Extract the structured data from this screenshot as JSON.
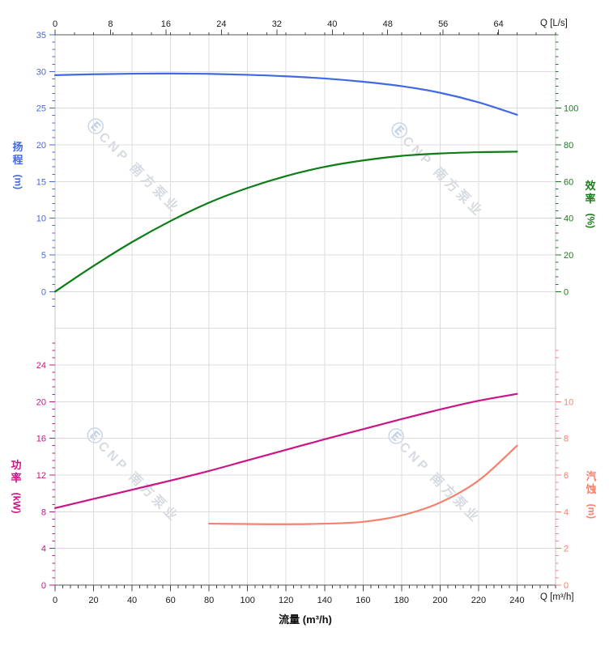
{
  "watermark": {
    "logo_glyph": "Ⓔ",
    "text": "CNP 南方泵业"
  },
  "chart_data": {
    "type": "line",
    "title": "",
    "grid": true,
    "x_axis_top": {
      "unit_label": "Q [L/s]",
      "ticks": [
        0,
        8,
        16,
        24,
        32,
        40,
        48,
        56,
        64
      ],
      "range_lps": [
        0,
        72.2
      ],
      "lps_to_m3h": 3.6
    },
    "x_axis_bottom": {
      "unit_label": "Q [m³/h]",
      "axis_title": "流量 (m³/h)",
      "ticks": [
        0,
        20,
        40,
        60,
        80,
        100,
        120,
        140,
        160,
        180,
        200,
        220,
        240
      ],
      "range": [
        0,
        260
      ]
    },
    "y_axes": {
      "head": {
        "title": "扬程",
        "unit": "(m)",
        "color": "#4468dd",
        "ticks": [
          35,
          30,
          25,
          20,
          15,
          10,
          5,
          0
        ],
        "range": [
          0,
          35
        ]
      },
      "efficiency": {
        "title": "效率",
        "unit": "(%)",
        "color": "#1c7a1c",
        "ticks": [
          100,
          80,
          60,
          40,
          20,
          0
        ],
        "range": [
          0,
          100
        ]
      },
      "power": {
        "title": "功率",
        "unit": "(kW)",
        "color": "#cc1487",
        "ticks": [
          24,
          20,
          16,
          12,
          8,
          4,
          0
        ],
        "range": [
          0,
          24
        ]
      },
      "npsh": {
        "title": "汽蚀",
        "unit": "(m)",
        "color": "#f4816e",
        "ticks": [
          10,
          8,
          6,
          4,
          2,
          0
        ],
        "range": [
          0,
          10
        ]
      }
    },
    "series": [
      {
        "name": "head",
        "axis": "head",
        "color": "#4169e1",
        "points": [
          [
            0,
            29.5
          ],
          [
            20,
            29.62
          ],
          [
            40,
            29.7
          ],
          [
            60,
            29.72
          ],
          [
            80,
            29.68
          ],
          [
            100,
            29.55
          ],
          [
            120,
            29.35
          ],
          [
            140,
            29.05
          ],
          [
            160,
            28.6
          ],
          [
            180,
            28.0
          ],
          [
            200,
            27.1
          ],
          [
            220,
            25.8
          ],
          [
            240,
            24.1
          ]
        ]
      },
      {
        "name": "efficiency",
        "axis": "efficiency",
        "color": "#0d7d17",
        "points": [
          [
            0,
            0
          ],
          [
            20,
            14
          ],
          [
            40,
            27
          ],
          [
            60,
            38.5
          ],
          [
            80,
            48.5
          ],
          [
            100,
            56.5
          ],
          [
            120,
            63
          ],
          [
            140,
            68
          ],
          [
            160,
            71.5
          ],
          [
            180,
            74
          ],
          [
            200,
            75.3
          ],
          [
            220,
            76
          ],
          [
            240,
            76.3
          ]
        ]
      },
      {
        "name": "power",
        "axis": "power",
        "color": "#cc1487",
        "points": [
          [
            0,
            8.4
          ],
          [
            20,
            9.4
          ],
          [
            40,
            10.4
          ],
          [
            60,
            11.4
          ],
          [
            80,
            12.45
          ],
          [
            100,
            13.6
          ],
          [
            120,
            14.75
          ],
          [
            140,
            15.9
          ],
          [
            160,
            17.0
          ],
          [
            180,
            18.1
          ],
          [
            200,
            19.15
          ],
          [
            220,
            20.1
          ],
          [
            240,
            20.85
          ]
        ]
      },
      {
        "name": "npsh",
        "axis": "npsh",
        "color": "#f4816e",
        "points": [
          [
            80,
            3.35
          ],
          [
            100,
            3.33
          ],
          [
            120,
            3.32
          ],
          [
            140,
            3.35
          ],
          [
            160,
            3.45
          ],
          [
            180,
            3.8
          ],
          [
            200,
            4.5
          ],
          [
            220,
            5.7
          ],
          [
            240,
            7.6
          ]
        ]
      }
    ]
  }
}
